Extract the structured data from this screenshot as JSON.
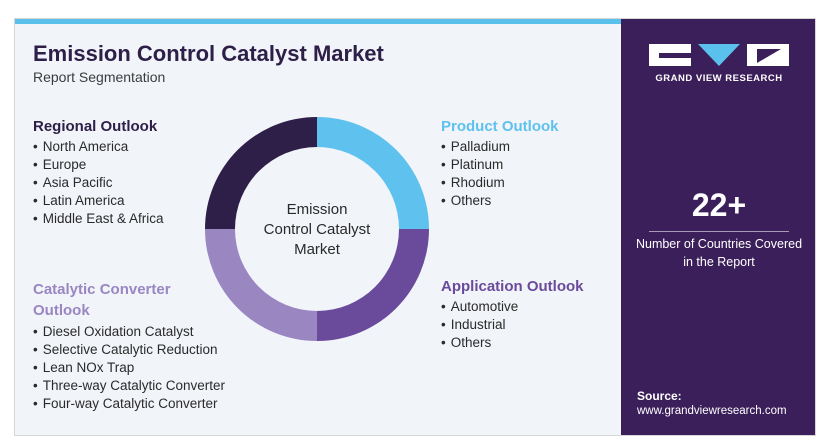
{
  "title": "Emission Control Catalyst Market",
  "subtitle": "Report Segmentation",
  "center_label": [
    "Emission",
    "Control Catalyst",
    "Market"
  ],
  "sections": {
    "regional": {
      "title": "Regional Outlook",
      "items": [
        "North America",
        "Europe",
        "Asia Pacific",
        "Latin America",
        "Middle East & Africa"
      ]
    },
    "product": {
      "title": "Product Outlook",
      "items": [
        "Palladium",
        "Platinum",
        "Rhodium",
        "Others"
      ]
    },
    "catalytic": {
      "title": "Catalytic Converter Outlook",
      "items": [
        "Diesel Oxidation Catalyst",
        "Selective Catalytic Reduction",
        "Lean NOx Trap",
        "Three-way Catalytic Converter",
        "Four-way Catalytic Converter"
      ]
    },
    "application": {
      "title": "Application Outlook",
      "items": [
        "Automotive",
        "Industrial",
        "Others"
      ]
    }
  },
  "donut_segments": [
    {
      "section": "product",
      "color": "#5ec1ee"
    },
    {
      "section": "application",
      "color": "#6a4a9a"
    },
    {
      "section": "catalytic",
      "color": "#9a86c1"
    },
    {
      "section": "regional",
      "color": "#2d1f47"
    }
  ],
  "brand": {
    "name": "GRAND VIEW RESEARCH",
    "accent": "#5ac0ec",
    "panel_color": "#3b1f5a"
  },
  "stat": {
    "value": "22+",
    "label": "Number of Countries Covered in the Report"
  },
  "source": {
    "label": "Source:",
    "url": "www.grandviewresearch.com"
  }
}
